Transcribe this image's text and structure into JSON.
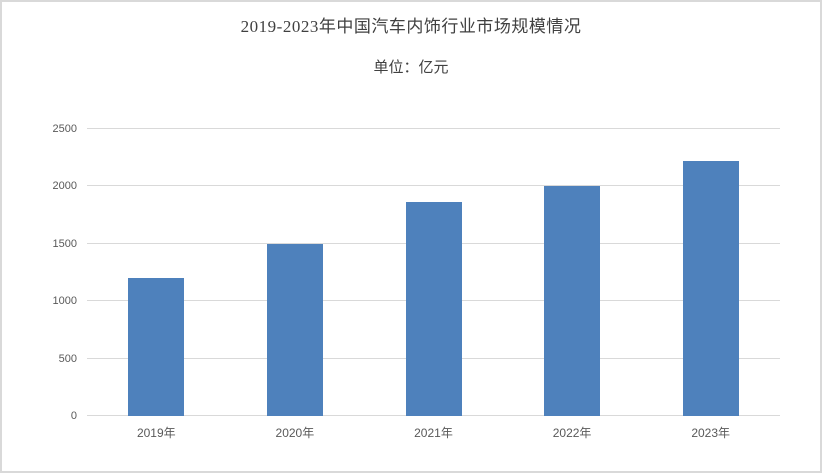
{
  "page": {
    "background": "#ffffff",
    "frame_border_color": "#d9d9d9"
  },
  "chart_data": {
    "type": "bar",
    "title": "2019-2023年中国汽车内饰行业市场规模情况",
    "subtitle": "单位：亿元",
    "categories": [
      "2019年",
      "2020年",
      "2021年",
      "2022年",
      "2023年"
    ],
    "values": [
      1200,
      1500,
      1860,
      2000,
      2220
    ],
    "xlabel": "",
    "ylabel": "",
    "ylim": [
      0,
      2500
    ],
    "yticks": [
      0,
      500,
      1000,
      1500,
      2000,
      2500
    ],
    "grid": true,
    "legend": false,
    "bar_color": "#4E81BC",
    "gridline_color": "#d9d9d9",
    "tick_label_color": "#595959",
    "title_color": "#404040"
  }
}
